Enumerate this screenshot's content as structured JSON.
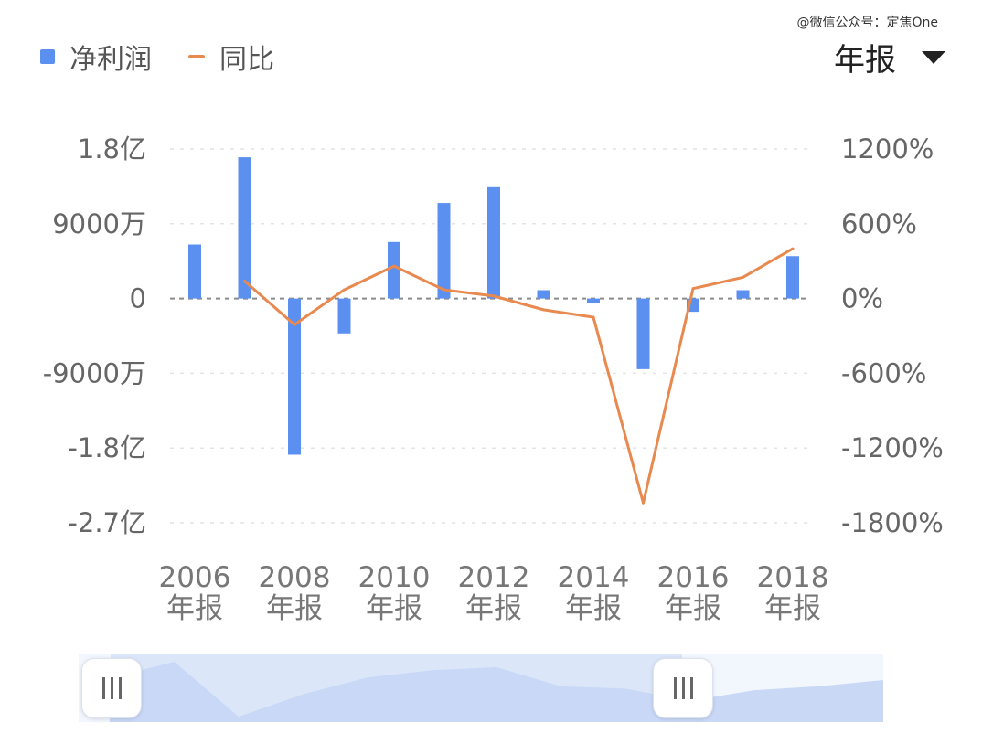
{
  "watermark": "@微信公众号：定焦One",
  "legend": {
    "bar_label": "净利润",
    "line_label": "同比"
  },
  "period_selector": {
    "value": "年报",
    "icon": "caret-down-icon"
  },
  "colors": {
    "bar": "#5b8ff0",
    "line": "#e8894f",
    "grid": "#e4e4e4",
    "zero_line": "#8a8a8a"
  },
  "chart_data": {
    "type": "bar",
    "years": [
      2006,
      2007,
      2008,
      2009,
      2010,
      2011,
      2012,
      2013,
      2014,
      2015,
      2016,
      2017,
      2018
    ],
    "series": [
      {
        "name": "净利润",
        "axis": "left",
        "type": "bar",
        "values": [
          65000000,
          170000000,
          -188000000,
          -42000000,
          68000000,
          115000000,
          134000000,
          10000000,
          -5000000,
          -85000000,
          -16000000,
          10000000,
          51000000
        ]
      },
      {
        "name": "同比",
        "axis": "right",
        "type": "line",
        "values": [
          null,
          140,
          -210,
          70,
          260,
          70,
          20,
          -90,
          -150,
          -1640,
          80,
          170,
          400
        ]
      }
    ],
    "left_axis": {
      "ticks": [
        180000000,
        90000000,
        0,
        -90000000,
        -180000000,
        -270000000
      ],
      "tick_labels": [
        "1.8亿",
        "9000万",
        "0",
        "-9000万",
        "-1.8亿",
        "-2.7亿"
      ],
      "range": [
        -270000000,
        180000000
      ]
    },
    "right_axis": {
      "ticks": [
        1200,
        600,
        0,
        -600,
        -1200,
        -1800
      ],
      "tick_labels": [
        "1200%",
        "600%",
        "0%",
        "-600%",
        "-1200%",
        "-1800%"
      ],
      "range": [
        -1800,
        1200
      ]
    },
    "x_tick_labels": [
      {
        "year": 2006,
        "line1": "2006",
        "line2": "年报"
      },
      {
        "year": 2008,
        "line1": "2008",
        "line2": "年报"
      },
      {
        "year": 2010,
        "line1": "2010",
        "line2": "年报"
      },
      {
        "year": 2012,
        "line1": "2012",
        "line2": "年报"
      },
      {
        "year": 2014,
        "line1": "2014",
        "line2": "年报"
      },
      {
        "year": 2016,
        "line1": "2016",
        "line2": "年报"
      },
      {
        "year": 2018,
        "line1": "2018",
        "line2": "年报"
      }
    ],
    "grid": true,
    "legend_position": "top-left"
  },
  "zoom_slider": {
    "start": 0.04,
    "end": 0.75,
    "left_handle_icon": "grip-icon",
    "right_handle_icon": "grip-icon"
  }
}
